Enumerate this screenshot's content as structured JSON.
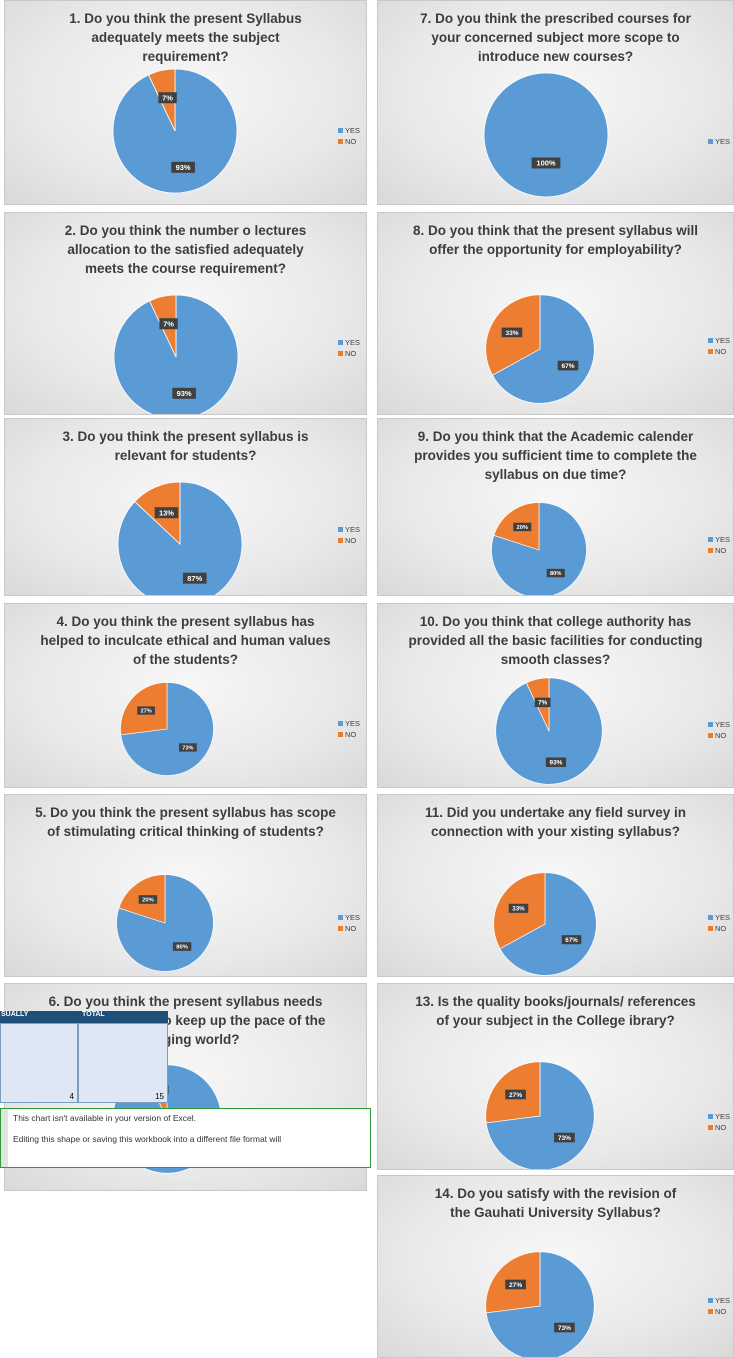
{
  "legend": {
    "yes": "YES",
    "no": "NO"
  },
  "colors": {
    "yes": "#5b9bd5",
    "no": "#ed7d31"
  },
  "chart_data": [
    {
      "type": "pie",
      "title": "1. Do you think the present Syllabus adequately meets the subject requirement?",
      "categories": [
        "YES",
        "NO"
      ],
      "values": [
        93,
        7
      ],
      "labels": [
        "93%",
        "7%"
      ]
    },
    {
      "type": "pie",
      "title": "2. Do you think the number o lectures allocation to the satisfied adequately meets the course requirement?",
      "categories": [
        "YES",
        "NO"
      ],
      "values": [
        93,
        7
      ],
      "labels": [
        "93%",
        "7%"
      ]
    },
    {
      "type": "pie",
      "title": "3. Do you think the present syllabus is relevant for students?",
      "categories": [
        "YES",
        "NO"
      ],
      "values": [
        87,
        13
      ],
      "labels": [
        "87%",
        "13%"
      ]
    },
    {
      "type": "pie",
      "title": "4. Do you think the present syllabus has helped to inculcate ethical and human values of the students?",
      "categories": [
        "YES",
        "NO"
      ],
      "values": [
        73,
        27
      ],
      "labels": [
        "73%",
        "27%"
      ]
    },
    {
      "type": "pie",
      "title": "5. Do you think the present syllabus has scope of stimulating critical thinking of students?",
      "categories": [
        "YES",
        "NO"
      ],
      "values": [
        80,
        20
      ],
      "labels": [
        "80%",
        "20%"
      ]
    },
    {
      "type": "pie",
      "title": "6. Do you think the present syllabus needs frequent revision to keep up the pace of the changing world?",
      "categories": [
        "YES",
        "NO"
      ],
      "values": [
        93,
        7
      ],
      "labels": [
        "93%",
        "7%"
      ]
    },
    {
      "type": "pie",
      "title": "7. Do you think the prescribed courses for your concerned subject more scope to introduce new courses?",
      "categories": [
        "YES"
      ],
      "values": [
        100
      ],
      "labels": [
        "100%"
      ]
    },
    {
      "type": "pie",
      "title": "8. Do you think that the present syllabus will offer the opportunity for employability?",
      "categories": [
        "YES",
        "NO"
      ],
      "values": [
        67,
        33
      ],
      "labels": [
        "67%",
        "33%"
      ]
    },
    {
      "type": "pie",
      "title": "9. Do you think that the Academic calender provides you sufficient time to complete the syllabus on due time?",
      "categories": [
        "YES",
        "NO"
      ],
      "values": [
        80,
        20
      ],
      "labels": [
        "80%",
        "20%"
      ]
    },
    {
      "type": "pie",
      "title": "10. Do you think that college authority has provided all the basic facilities for conducting smooth classes?",
      "categories": [
        "YES",
        "NO"
      ],
      "values": [
        93,
        7
      ],
      "labels": [
        "93%",
        "7%"
      ]
    },
    {
      "type": "pie",
      "title": "11. Did you undertake any field survey in connection with your xisting syllabus?",
      "categories": [
        "YES",
        "NO"
      ],
      "values": [
        67,
        33
      ],
      "labels": [
        "67%",
        "33%"
      ]
    },
    {
      "type": "pie",
      "title": "13. Is the quality books/journals/ references of your subject in the College ibrary?",
      "categories": [
        "YES",
        "NO"
      ],
      "values": [
        73,
        27
      ],
      "labels": [
        "73%",
        "27%"
      ]
    },
    {
      "type": "pie",
      "title": "14. Do you satisfy with the revision of the Gauhati University Syllabus?",
      "categories": [
        "YES",
        "NO"
      ],
      "values": [
        73,
        27
      ],
      "labels": [
        "73%",
        "27%"
      ]
    }
  ],
  "table": {
    "headers": [
      "SUALLY",
      "TOTAL"
    ],
    "values": [
      "4",
      "15"
    ]
  },
  "notice": {
    "line1": "This chart isn't available in your version of Excel.",
    "line2": "Editing this shape or saving this workbook into a different file format will"
  }
}
